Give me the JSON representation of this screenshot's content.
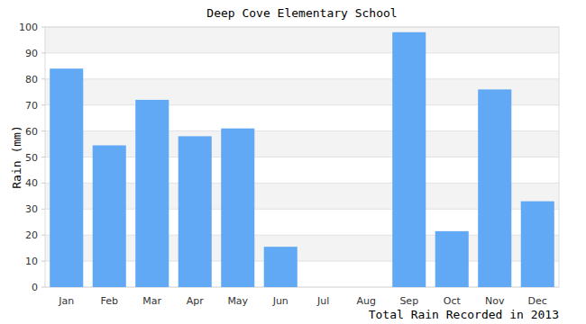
{
  "chart_data": {
    "type": "bar",
    "title": "Deep Cove Elementary School",
    "y_label": "Rain (mm)",
    "x_label": "Total Rain Recorded in 2013",
    "categories": [
      "Jan",
      "Feb",
      "Mar",
      "Apr",
      "May",
      "Jun",
      "Jul",
      "Aug",
      "Sep",
      "Oct",
      "Nov",
      "Dec"
    ],
    "values": [
      84,
      54.5,
      72,
      58,
      61,
      15.5,
      0,
      0,
      98,
      21.5,
      76,
      33
    ],
    "color": "#61a8f5",
    "ylim": [
      0,
      100
    ],
    "yticks": [
      0,
      10,
      20,
      30,
      40,
      50,
      60,
      70,
      80,
      90,
      100
    ],
    "grid": true
  }
}
